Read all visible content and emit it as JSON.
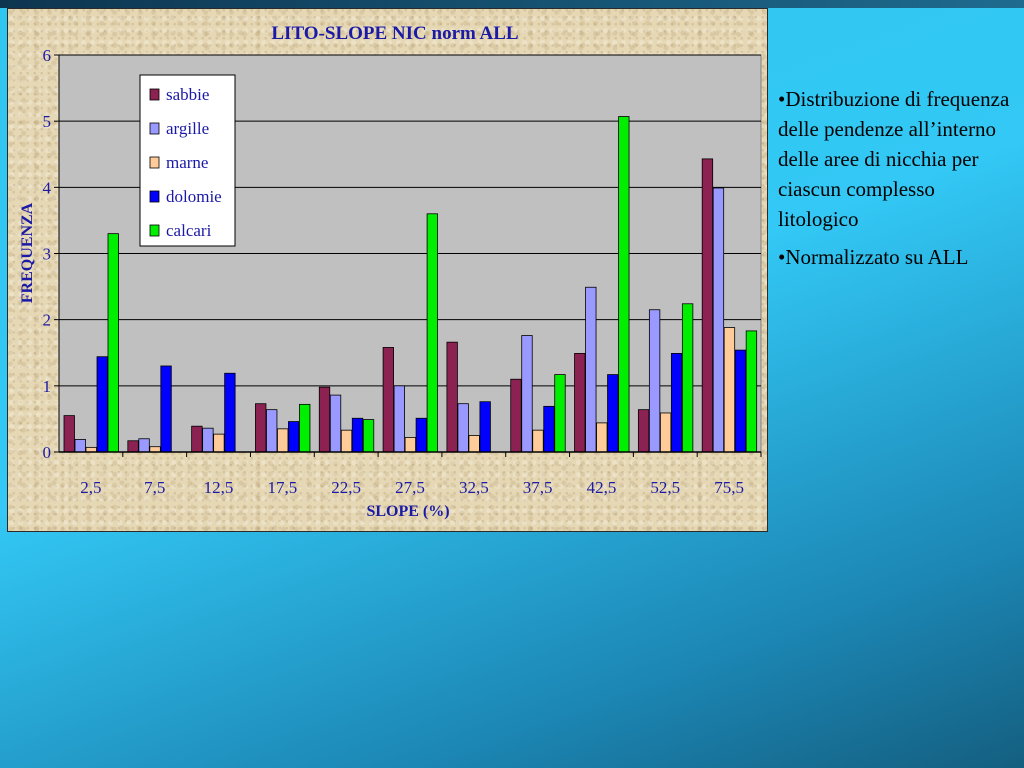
{
  "chart_data": {
    "type": "bar",
    "title": "LITO-SLOPE NIC norm ALL",
    "xlabel": "SLOPE (%)",
    "ylabel": "FREQUENZA",
    "categories": [
      "2,5",
      "7,5",
      "12,5",
      "17,5",
      "22,5",
      "27,5",
      "32,5",
      "37,5",
      "42,5",
      "52,5",
      "75,5"
    ],
    "ylim": [
      0,
      6
    ],
    "yticks": [
      "0",
      "1",
      "2",
      "3",
      "4",
      "5",
      "6"
    ],
    "grid": true,
    "legend_position": "top-left",
    "series": [
      {
        "name": "sabbie",
        "color": "#8b2252",
        "values": [
          0.55,
          0.17,
          0.39,
          0.73,
          0.98,
          1.58,
          1.66,
          1.1,
          1.49,
          0.64,
          4.43
        ]
      },
      {
        "name": "argille",
        "color": "#9999ff",
        "values": [
          0.19,
          0.2,
          0.36,
          0.64,
          0.86,
          1.0,
          0.73,
          1.76,
          2.49,
          2.15,
          3.99
        ]
      },
      {
        "name": "marne",
        "color": "#ffcc99",
        "values": [
          0.07,
          0.08,
          0.27,
          0.35,
          0.33,
          0.22,
          0.25,
          0.33,
          0.44,
          0.59,
          1.88
        ]
      },
      {
        "name": "dolomie",
        "color": "#0000ff",
        "values": [
          1.44,
          1.3,
          1.19,
          0.46,
          0.51,
          0.51,
          0.76,
          0.69,
          1.17,
          1.49,
          1.54
        ]
      },
      {
        "name": "calcari",
        "color": "#00ee00",
        "values": [
          3.3,
          0.0,
          0.0,
          0.72,
          0.49,
          3.6,
          0.0,
          1.17,
          5.07,
          2.24,
          1.83
        ]
      }
    ]
  },
  "notes": {
    "bullet_1": "•Distribuzione di frequenza delle pendenze all’interno delle aree di nicchia per ciascun complesso litologico",
    "bullet_2": "•Normalizzato su ALL"
  },
  "colors": {
    "title_text": "#1a1aa6",
    "plot_area": "#c0c0c0",
    "frame": "#e6d8b4"
  }
}
